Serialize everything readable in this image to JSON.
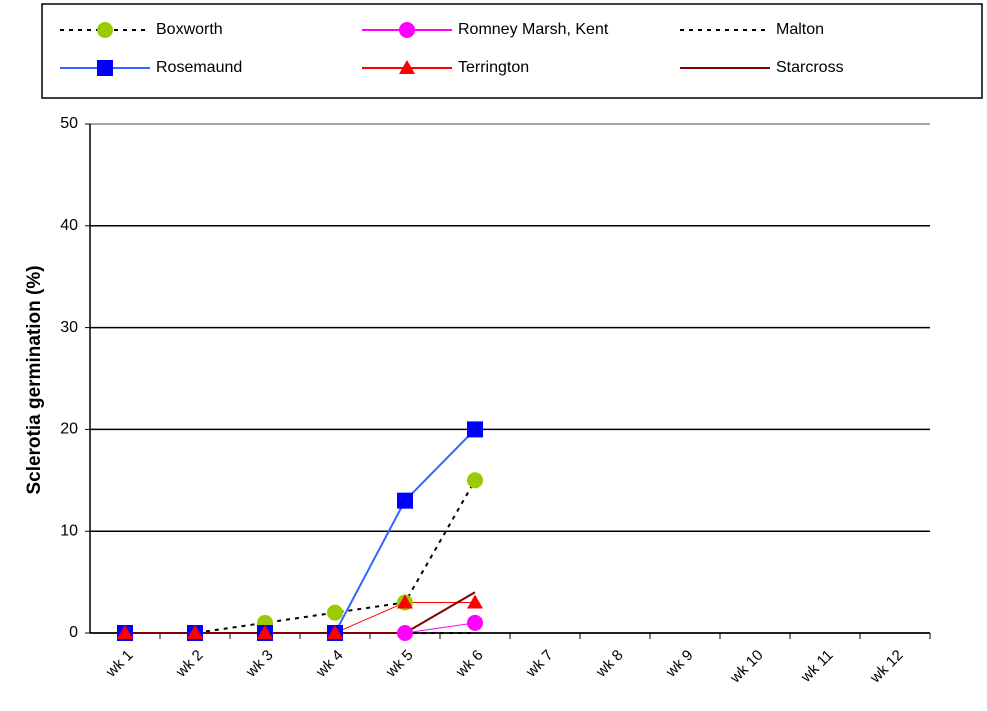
{
  "chart_data": {
    "type": "line",
    "y_label": "Sclerotia germination (%)",
    "categories": [
      "wk 1",
      "wk 2",
      "wk 3",
      "wk 4",
      "wk 5",
      "wk 6",
      "wk 7",
      "wk 8",
      "wk 9",
      "wk 10",
      "wk 11",
      "wk 12"
    ],
    "ylim": [
      0,
      50
    ],
    "yticks": [
      0,
      10,
      20,
      30,
      40,
      50
    ],
    "grid": true,
    "legend": "top",
    "series": [
      {
        "name": "Boxworth",
        "color": "#000000",
        "dash": "dotted",
        "marker": "circle",
        "marker_color": "#99cc00",
        "values": [
          0,
          0,
          1,
          2,
          3,
          15,
          null,
          null,
          null,
          null,
          null,
          null
        ]
      },
      {
        "name": "Romney Marsh, Kent",
        "color": "#ff00ff",
        "dash": "solid",
        "marker": "circle",
        "marker_color": "#ff00ff",
        "values": [
          0,
          0,
          0,
          0,
          0,
          1,
          null,
          null,
          null,
          null,
          null,
          null
        ]
      },
      {
        "name": "Malton",
        "color": "#000000",
        "dash": "dotted",
        "marker": "none",
        "marker_color": "#000000",
        "values": [
          0,
          0,
          0,
          0,
          0,
          0,
          null,
          null,
          null,
          null,
          null,
          null
        ]
      },
      {
        "name": "Rosemaund",
        "color": "#3366ff",
        "dash": "solid",
        "marker": "square",
        "marker_color": "#0000ff",
        "values": [
          0,
          0,
          0,
          0,
          13,
          20,
          null,
          null,
          null,
          null,
          null,
          null
        ]
      },
      {
        "name": "Terrington",
        "color": "#ff0000",
        "dash": "solid",
        "marker": "triangle",
        "marker_color": "#ff0000",
        "values": [
          0,
          0,
          0,
          0,
          3,
          3,
          null,
          null,
          null,
          null,
          null,
          null
        ]
      },
      {
        "name": "Starcross",
        "color": "#800000",
        "dash": "solid",
        "marker": "none",
        "marker_color": "#800000",
        "values": [
          0,
          0,
          0,
          0,
          0,
          4,
          null,
          null,
          null,
          null,
          null,
          null
        ]
      }
    ]
  }
}
